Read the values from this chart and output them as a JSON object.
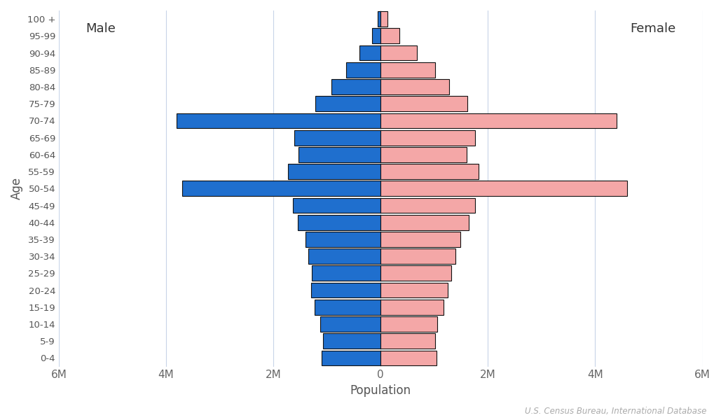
{
  "age_groups": [
    "0-4",
    "5-9",
    "10-14",
    "15-19",
    "20-24",
    "25-29",
    "30-34",
    "35-39",
    "40-44",
    "45-49",
    "50-54",
    "55-59",
    "60-64",
    "65-69",
    "70-74",
    "75-79",
    "80-84",
    "85-89",
    "90-94",
    "95-99",
    "100 +"
  ],
  "male": [
    1100000,
    1080000,
    1120000,
    1230000,
    1290000,
    1280000,
    1350000,
    1400000,
    1550000,
    1630000,
    3700000,
    1730000,
    1530000,
    1610000,
    3800000,
    1220000,
    920000,
    640000,
    390000,
    165000,
    52000
  ],
  "female": [
    1040000,
    1010000,
    1050000,
    1170000,
    1250000,
    1310000,
    1400000,
    1490000,
    1640000,
    1760000,
    4600000,
    1820000,
    1600000,
    1760000,
    4400000,
    1620000,
    1280000,
    1010000,
    670000,
    345000,
    130000
  ],
  "male_color": "#1f6fce",
  "female_color": "#f4a7a7",
  "male_edgecolor": "#111111",
  "female_edgecolor": "#111111",
  "xlabel": "Population",
  "ylabel": "Age",
  "male_label": "Male",
  "female_label": "Female",
  "xlim": 6000000,
  "xtick_values": [
    -6000000,
    -4000000,
    -2000000,
    0,
    2000000,
    4000000,
    6000000
  ],
  "xtick_labels": [
    "6M",
    "4M",
    "2M",
    "0",
    "2M",
    "4M",
    "6M"
  ],
  "background_color": "#ffffff",
  "grid_color": "#c8d4e8",
  "source_text": "U.S. Census Bureau, International Database",
  "bar_linewidth": 0.8
}
